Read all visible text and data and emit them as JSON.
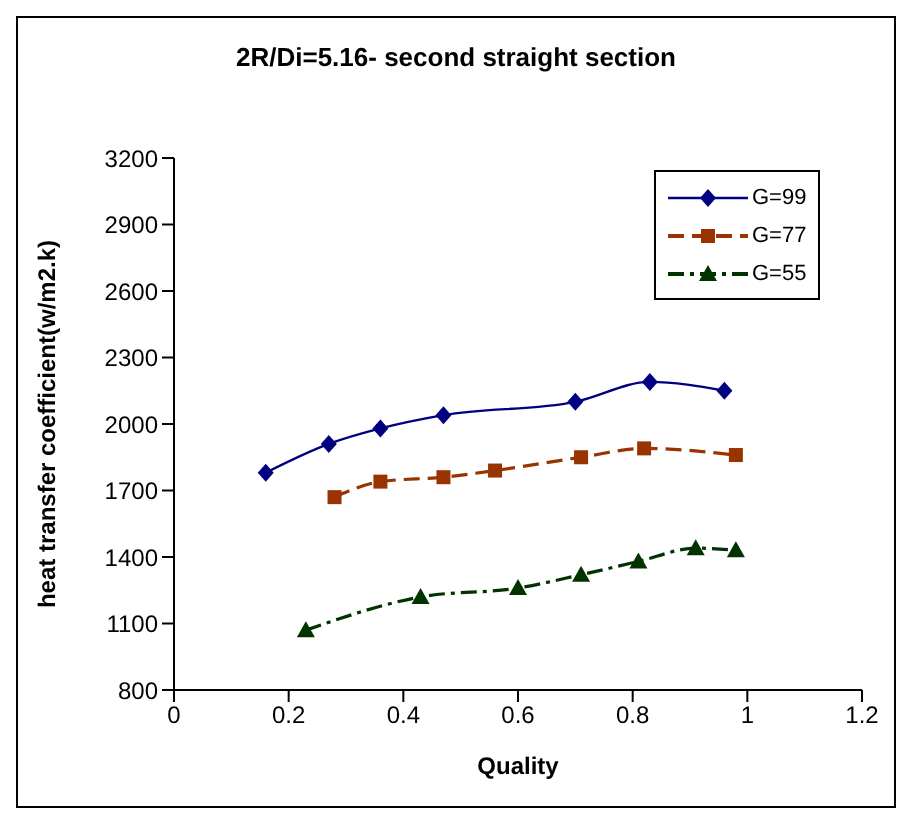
{
  "chart_data": {
    "type": "line",
    "title": "2R/Di=5.16- second straight section",
    "xlabel": "Quality",
    "ylabel": "heat transfer coefficient(w/m2.k)",
    "xlim": [
      0,
      1.2
    ],
    "xticks": [
      0,
      0.2,
      0.4,
      0.6,
      0.8,
      1,
      1.2
    ],
    "ylim": [
      800,
      3200
    ],
    "yticks": [
      800,
      1100,
      1400,
      1700,
      2000,
      2300,
      2600,
      2900,
      3200
    ],
    "legend": "top right",
    "series": [
      {
        "name": "G=99",
        "color": "#000080",
        "marker": "diamond",
        "line_style": "solid",
        "x": [
          0.16,
          0.27,
          0.36,
          0.47,
          0.7,
          0.83,
          0.96
        ],
        "values": [
          1780,
          1910,
          1980,
          2040,
          2100,
          2190,
          2150
        ]
      },
      {
        "name": "G=77",
        "color": "#993300",
        "marker": "square",
        "line_style": "dashed",
        "x": [
          0.28,
          0.36,
          0.47,
          0.56,
          0.71,
          0.82,
          0.98
        ],
        "values": [
          1670,
          1740,
          1760,
          1790,
          1850,
          1890,
          1860
        ]
      },
      {
        "name": "G=55",
        "color": "#003300",
        "marker": "triangle",
        "line_style": "dashdot",
        "x": [
          0.23,
          0.43,
          0.6,
          0.71,
          0.81,
          0.91,
          0.98
        ],
        "values": [
          1070,
          1220,
          1260,
          1320,
          1380,
          1440,
          1430
        ]
      }
    ]
  }
}
